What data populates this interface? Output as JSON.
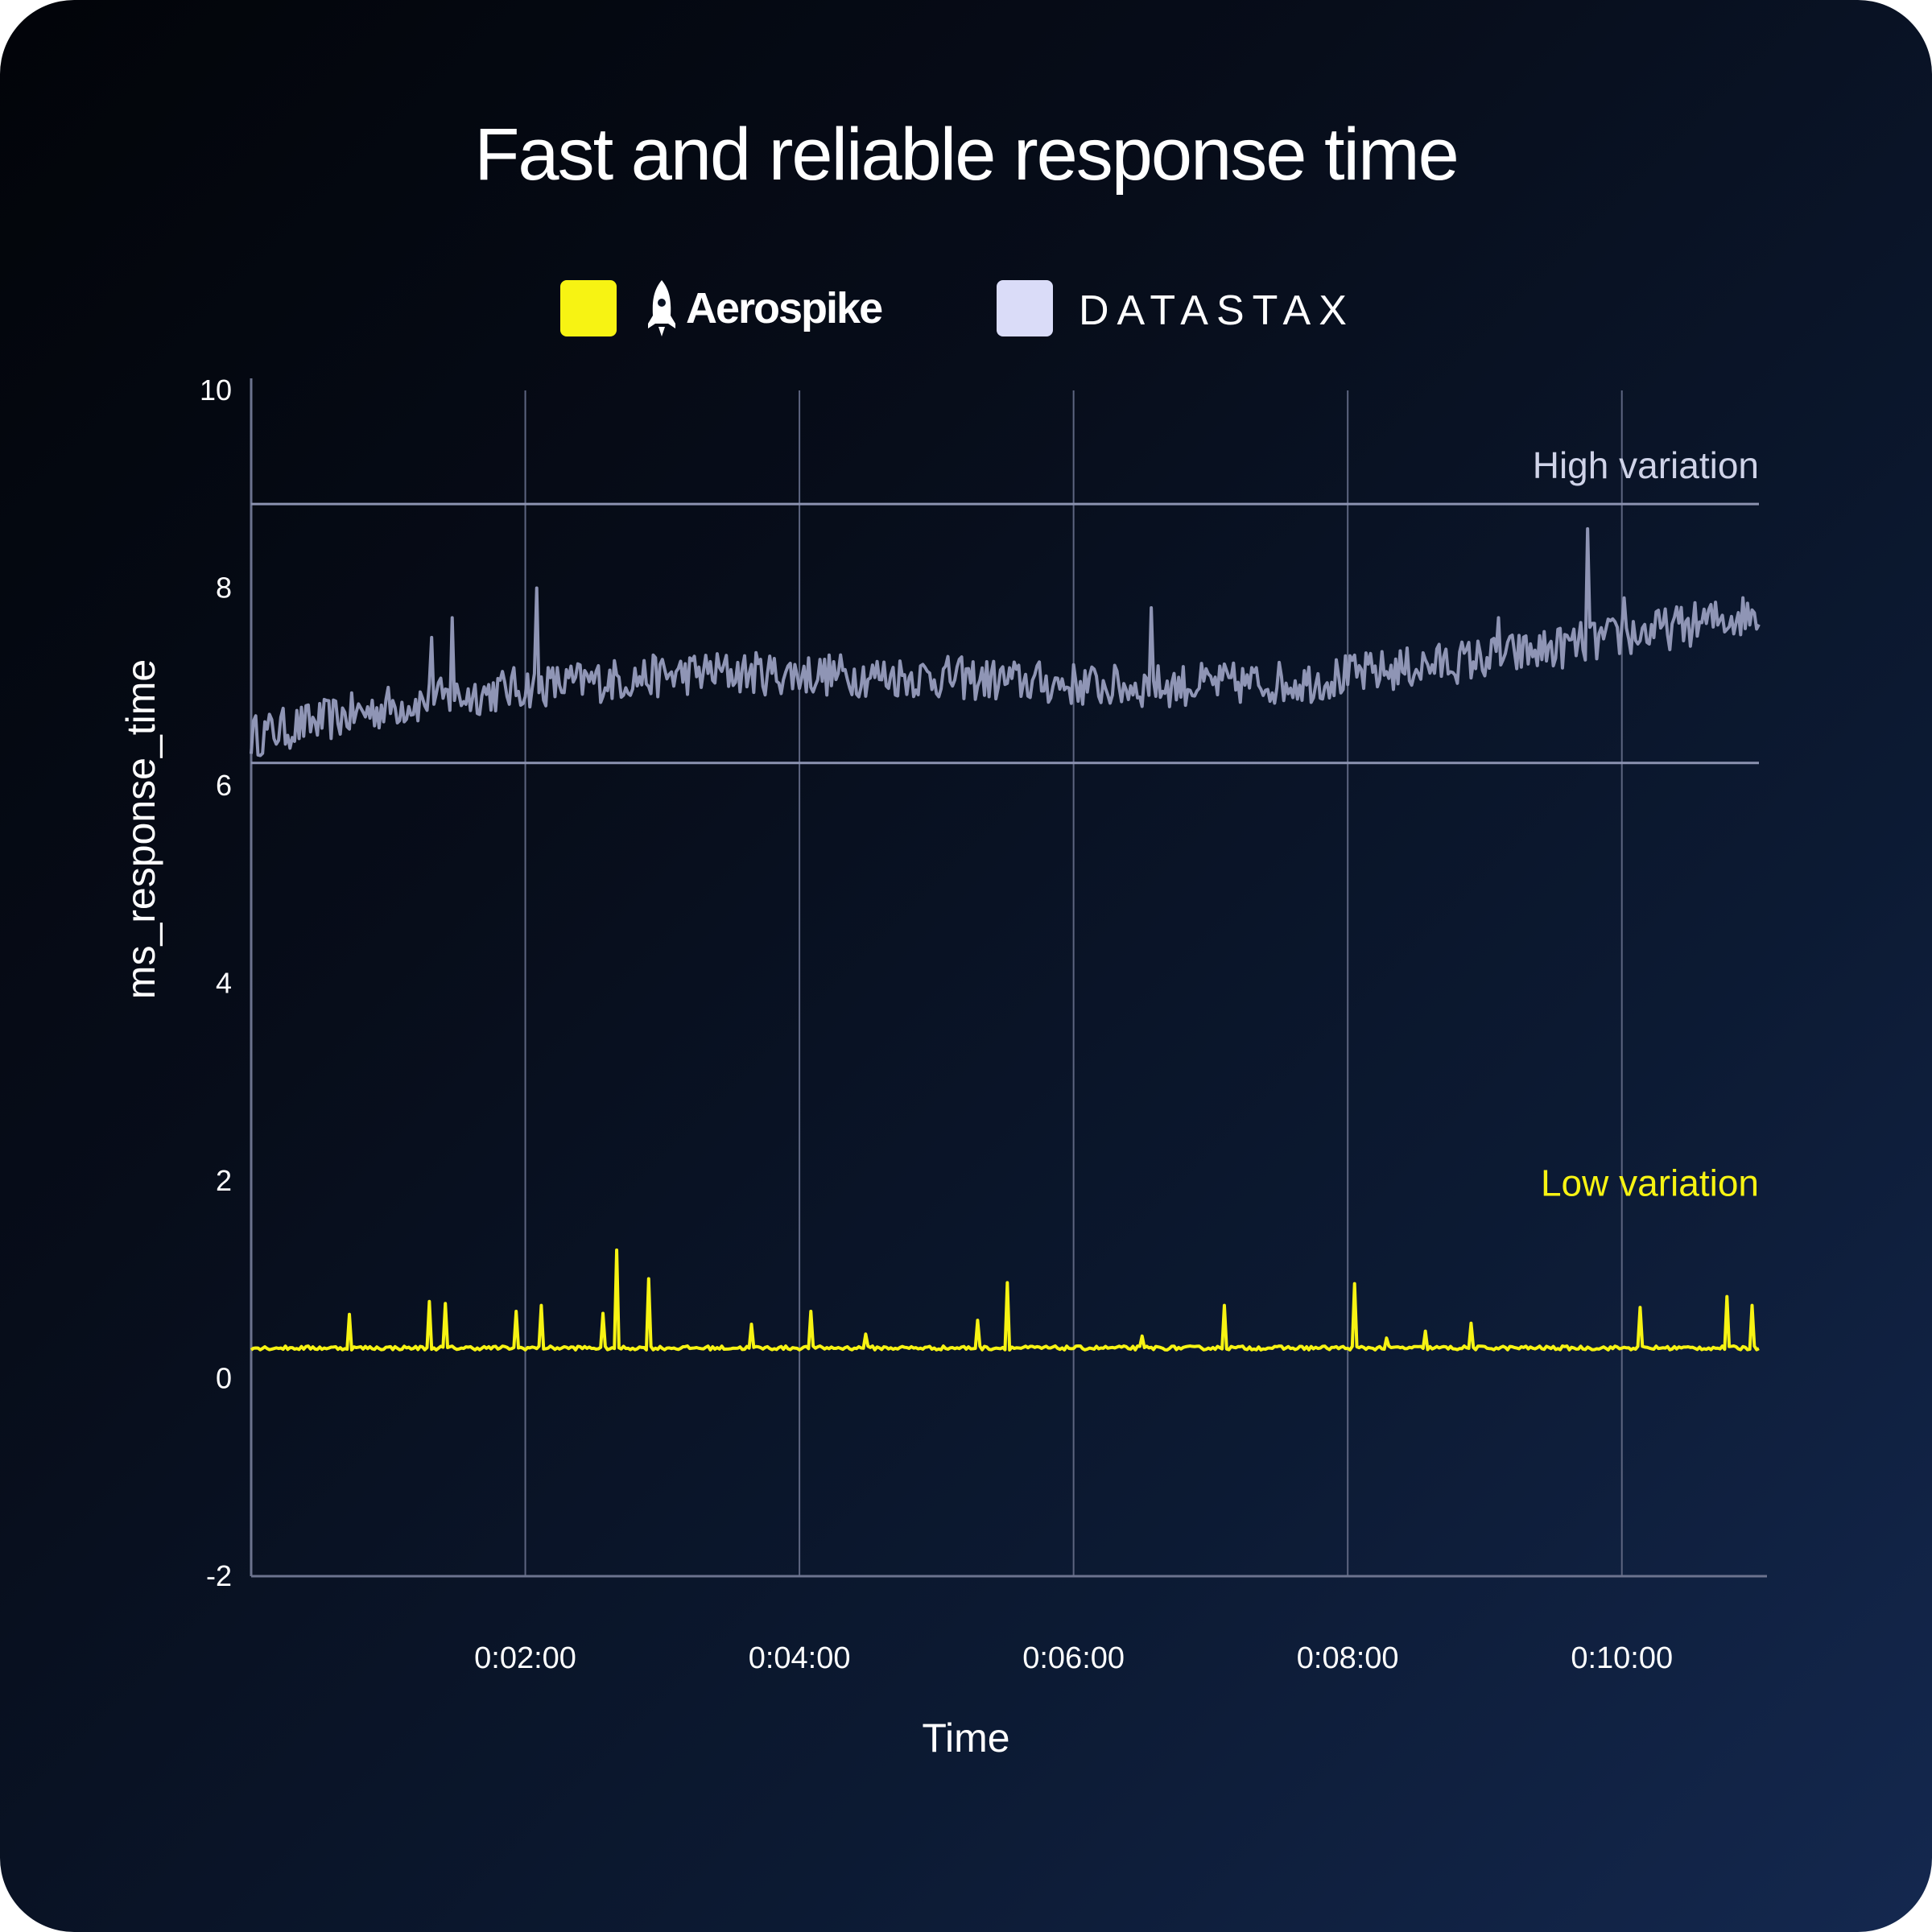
{
  "title": "Fast and reliable response time",
  "legend": [
    {
      "label": "Aerospike",
      "color": "#f7f313",
      "icon": "rocket-icon"
    },
    {
      "label": "DATASTAX",
      "color": "#dadcf8"
    }
  ],
  "colors": {
    "aerospike_line": "#f7f313",
    "datastax_line": "#8f95b5",
    "grid": "#5d6580",
    "axis": "#6c738e",
    "text": "#ffffff",
    "annotation_high": "#cfd3e8",
    "annotation_low": "#f7f313"
  },
  "chart_data": {
    "type": "line",
    "title": "Fast and reliable response time",
    "xlabel": "Time",
    "ylabel": "ms_response_time",
    "x_unit": "seconds",
    "xlim": [
      0,
      660
    ],
    "ylim": [
      -2,
      10
    ],
    "x_ticks": [
      120,
      240,
      360,
      480,
      600
    ],
    "x_tick_labels": [
      "0:02:00",
      "0:04:00",
      "0:06:00",
      "0:08:00",
      "0:10:00"
    ],
    "y_ticks": [
      -2,
      0,
      2,
      4,
      6,
      8,
      10
    ],
    "y_tick_labels": [
      "-2",
      "0",
      "2",
      "4",
      "6",
      "8",
      "10"
    ],
    "grid": "vertical",
    "legend_position": "top-center",
    "series": [
      {
        "name": "Aerospike",
        "baseline": 0.31,
        "noise": 0.02,
        "spikes": [
          {
            "x": 43,
            "y": 0.65
          },
          {
            "x": 78,
            "y": 0.78
          },
          {
            "x": 85,
            "y": 0.76
          },
          {
            "x": 116,
            "y": 0.68
          },
          {
            "x": 127,
            "y": 0.74
          },
          {
            "x": 154,
            "y": 0.66
          },
          {
            "x": 160,
            "y": 1.3
          },
          {
            "x": 174,
            "y": 1.01
          },
          {
            "x": 219,
            "y": 0.55
          },
          {
            "x": 245,
            "y": 0.68
          },
          {
            "x": 269,
            "y": 0.45
          },
          {
            "x": 318,
            "y": 0.59
          },
          {
            "x": 331,
            "y": 0.97
          },
          {
            "x": 390,
            "y": 0.43
          },
          {
            "x": 426,
            "y": 0.74
          },
          {
            "x": 483,
            "y": 0.96
          },
          {
            "x": 497,
            "y": 0.41
          },
          {
            "x": 514,
            "y": 0.48
          },
          {
            "x": 534,
            "y": 0.56
          },
          {
            "x": 608,
            "y": 0.72
          },
          {
            "x": 646,
            "y": 0.83
          },
          {
            "x": 657,
            "y": 0.74
          }
        ]
      },
      {
        "name": "DATASTAX",
        "trend": [
          {
            "x": 0,
            "y": 6.5
          },
          {
            "x": 60,
            "y": 6.8
          },
          {
            "x": 120,
            "y": 7.0
          },
          {
            "x": 200,
            "y": 7.15
          },
          {
            "x": 300,
            "y": 7.1
          },
          {
            "x": 380,
            "y": 7.0
          },
          {
            "x": 460,
            "y": 7.05
          },
          {
            "x": 560,
            "y": 7.35
          },
          {
            "x": 660,
            "y": 7.75
          }
        ],
        "noise": 0.22,
        "spikes": [
          {
            "x": 79,
            "y": 7.5
          },
          {
            "x": 88,
            "y": 7.7
          },
          {
            "x": 125,
            "y": 8.0
          },
          {
            "x": 394,
            "y": 7.8
          },
          {
            "x": 546,
            "y": 7.7
          },
          {
            "x": 585,
            "y": 8.6
          },
          {
            "x": 601,
            "y": 7.9
          }
        ]
      }
    ],
    "annotations": [
      {
        "text": "High variation",
        "band": [
          6.23,
          8.85
        ],
        "series": "DATASTAX"
      },
      {
        "text": "Low variation",
        "series": "Aerospike",
        "label_y": 1.85
      }
    ]
  }
}
